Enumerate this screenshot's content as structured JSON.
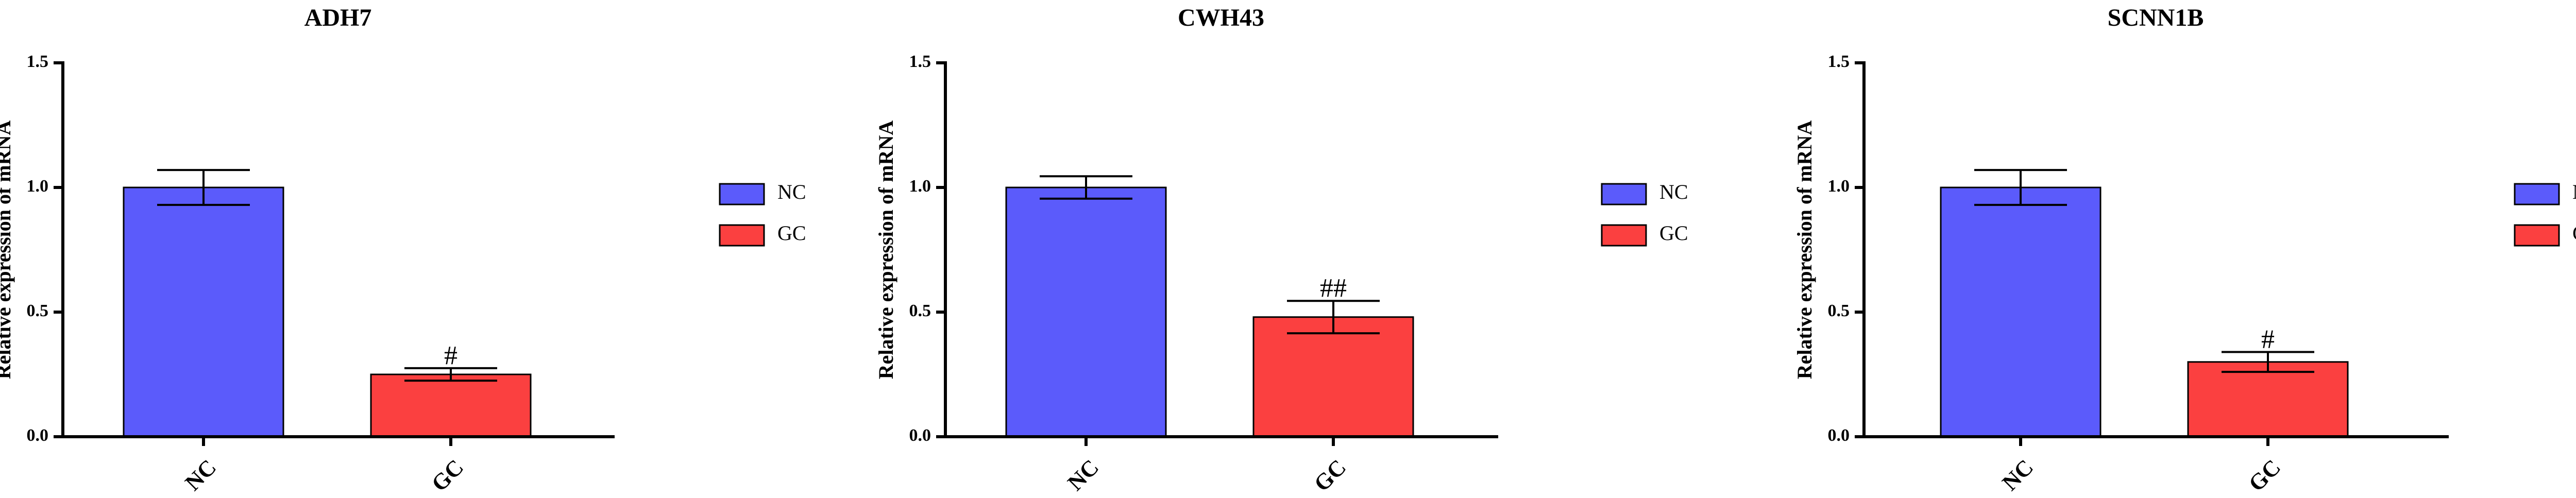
{
  "colors": {
    "NC": "#5b5bfb",
    "GC": "#fb4040"
  },
  "chart_data": [
    {
      "type": "bar",
      "title": "ADH7",
      "ylabel": "Relative expression of mRNA",
      "xlabel": "",
      "ylim": [
        0,
        1.5
      ],
      "yticks": [
        "0.0",
        "0.5",
        "1.0",
        "1.5"
      ],
      "categories": [
        "NC",
        "GC"
      ],
      "values": [
        1.0,
        0.25
      ],
      "errors": [
        0.07,
        0.025
      ],
      "annotations": [
        "",
        "#"
      ],
      "legend": [
        "NC",
        "GC"
      ],
      "legend_position": "right"
    },
    {
      "type": "bar",
      "title": "CWH43",
      "ylabel": "Relative expression of mRNA",
      "xlabel": "",
      "ylim": [
        0,
        1.5
      ],
      "yticks": [
        "0.0",
        "0.5",
        "1.0",
        "1.5"
      ],
      "categories": [
        "NC",
        "GC"
      ],
      "values": [
        1.0,
        0.48
      ],
      "errors": [
        0.045,
        0.065
      ],
      "annotations": [
        "",
        "##"
      ],
      "legend": [
        "NC",
        "GC"
      ],
      "legend_position": "right"
    },
    {
      "type": "bar",
      "title": "SCNN1B",
      "ylabel": "Relative expression of mRNA",
      "xlabel": "",
      "ylim": [
        0,
        1.5
      ],
      "yticks": [
        "0.0",
        "0.5",
        "1.0",
        "1.5"
      ],
      "categories": [
        "NC",
        "GC"
      ],
      "values": [
        1.0,
        0.3
      ],
      "errors": [
        0.07,
        0.04
      ],
      "annotations": [
        "",
        "#"
      ],
      "legend": [
        "NC",
        "GC"
      ],
      "legend_position": "right"
    }
  ]
}
